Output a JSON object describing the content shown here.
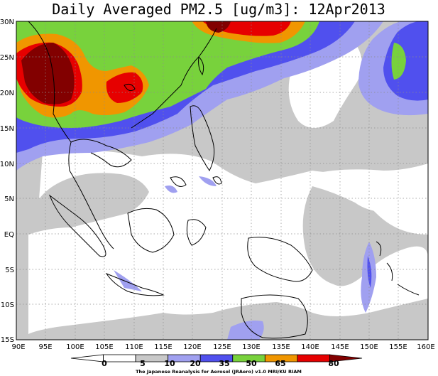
{
  "title": "Daily Averaged PM2.5 [ug/m3]: 12Apr2013",
  "credit": "The Japanese Reanalysis for Aerosol (JRAero) v1.0 MRI/KU RIAM",
  "axes": {
    "x_ticks": [
      "90E",
      "95E",
      "100E",
      "105E",
      "110E",
      "115E",
      "120E",
      "125E",
      "130E",
      "135E",
      "140E",
      "145E",
      "150E",
      "155E",
      "160E"
    ],
    "y_ticks": [
      "30N",
      "25N",
      "20N",
      "15N",
      "10N",
      "5N",
      "EQ",
      "5S",
      "10S",
      "15S"
    ]
  },
  "colorbar": {
    "labels": [
      "0",
      "5",
      "10",
      "20",
      "35",
      "50",
      "65",
      "80"
    ],
    "colors": [
      "#ffffff",
      "#ffffff",
      "#c8c8c8",
      "#a0a0f0",
      "#5050ee",
      "#78d23c",
      "#f09600",
      "#e60000",
      "#820000"
    ]
  },
  "chart_data": {
    "type": "heatmap",
    "title": "Daily Averaged PM2.5 [ug/m3]: 12Apr2013",
    "xlim": [
      90,
      160
    ],
    "ylim": [
      -15,
      30
    ],
    "grid": true
  }
}
